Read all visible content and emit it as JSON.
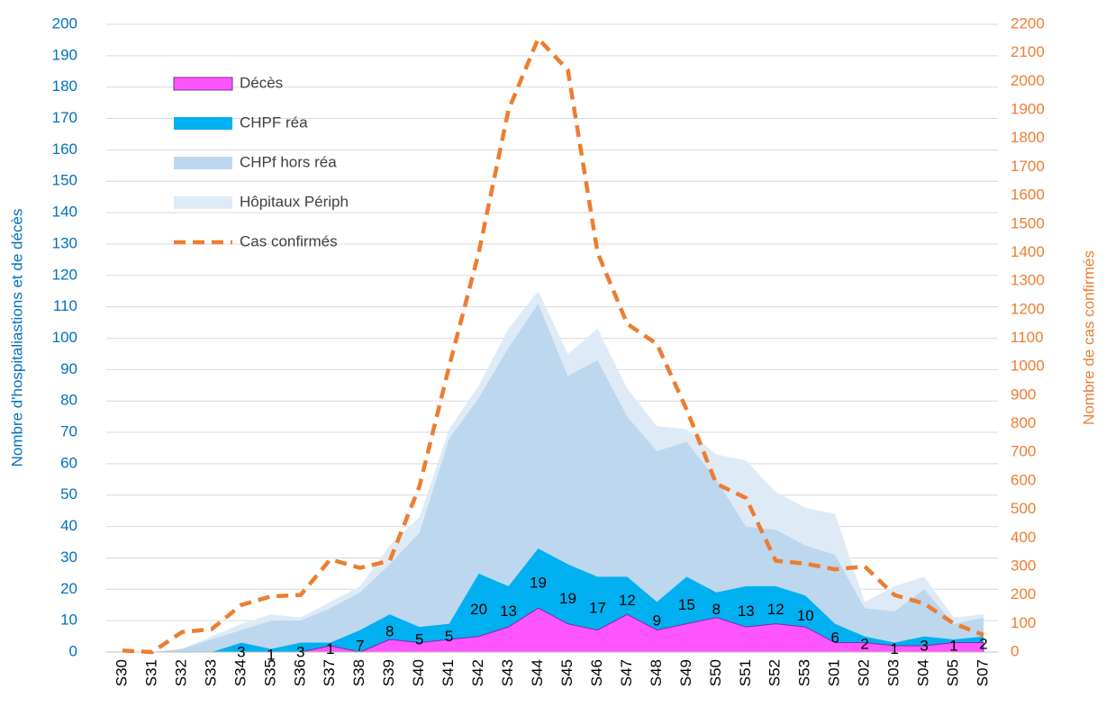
{
  "chart_data": {
    "type": "stacked_area_line",
    "y_label": "Nombre d'hospitaliastions et de décès",
    "y2_label": "Nombre de cas confirmés",
    "categories": [
      "S30",
      "S31",
      "S32",
      "S33",
      "S34",
      "S35",
      "S36",
      "S37",
      "S38",
      "S39",
      "S40",
      "S41",
      "S42",
      "S43",
      "S44",
      "S45",
      "S46",
      "S47",
      "S48",
      "S49",
      "S50",
      "S51",
      "S52",
      "S53",
      "S01",
      "S02",
      "S03",
      "S04",
      "S05",
      "S07"
    ],
    "series": [
      {
        "name": "Décès",
        "color": "#ff55ff",
        "stroke": "#7030a0",
        "kind": "area",
        "values": [
          0,
          0,
          0,
          0,
          0,
          0,
          0,
          2,
          0,
          4,
          3,
          4,
          5,
          8,
          14,
          9,
          7,
          12,
          7,
          9,
          11,
          8,
          9,
          8,
          3,
          3,
          2,
          2,
          3,
          3
        ]
      },
      {
        "name": "CHPF réa",
        "color": "#00b0f0",
        "kind": "area",
        "labels": true,
        "values": [
          0,
          0,
          0,
          0,
          3,
          1,
          3,
          1,
          7,
          8,
          5,
          5,
          20,
          13,
          19,
          19,
          17,
          12,
          9,
          15,
          8,
          13,
          12,
          10,
          6,
          2,
          1,
          3,
          1,
          2
        ]
      },
      {
        "name": "CHPf hors réa",
        "color": "#bdd7ee",
        "kind": "area",
        "values": [
          0,
          0,
          1,
          4,
          4,
          9,
          7,
          11,
          12,
          16,
          30,
          59,
          56,
          76,
          78,
          60,
          69,
          51,
          48,
          43,
          36,
          19,
          18,
          16,
          22,
          9,
          10,
          15,
          5,
          6
        ]
      },
      {
        "name": "Hôpitaux Périph",
        "color": "#deebf7",
        "kind": "area",
        "values": [
          0,
          0,
          0,
          1,
          2,
          2,
          1,
          2,
          2,
          6,
          5,
          3,
          4,
          6,
          4,
          7,
          10,
          9,
          8,
          4,
          8,
          21,
          12,
          12,
          13,
          2,
          8,
          4,
          2,
          1
        ]
      },
      {
        "name": "Cas confirmés",
        "color": "#ed7d31",
        "kind": "line",
        "axis": "y2",
        "values": [
          5,
          0,
          70,
          80,
          165,
          195,
          200,
          325,
          295,
          320,
          580,
          1000,
          1400,
          1900,
          2150,
          2040,
          1400,
          1150,
          1080,
          850,
          590,
          540,
          320,
          310,
          290,
          300,
          200,
          170,
          100,
          60
        ]
      }
    ],
    "ylim": [
      0,
      200
    ],
    "yticks": [
      0,
      10,
      20,
      30,
      40,
      50,
      60,
      70,
      80,
      90,
      100,
      110,
      120,
      130,
      140,
      150,
      160,
      170,
      180,
      190,
      200
    ],
    "y2lim": [
      0,
      2200
    ],
    "y2ticks": [
      0,
      100,
      200,
      300,
      400,
      500,
      600,
      700,
      800,
      900,
      1000,
      1100,
      1200,
      1300,
      1400,
      1500,
      1600,
      1700,
      1800,
      1900,
      2000,
      2100,
      2200
    ],
    "grid": true,
    "y_color": "#0070c0",
    "y2_color": "#ed7d31",
    "legend": "upper left"
  }
}
